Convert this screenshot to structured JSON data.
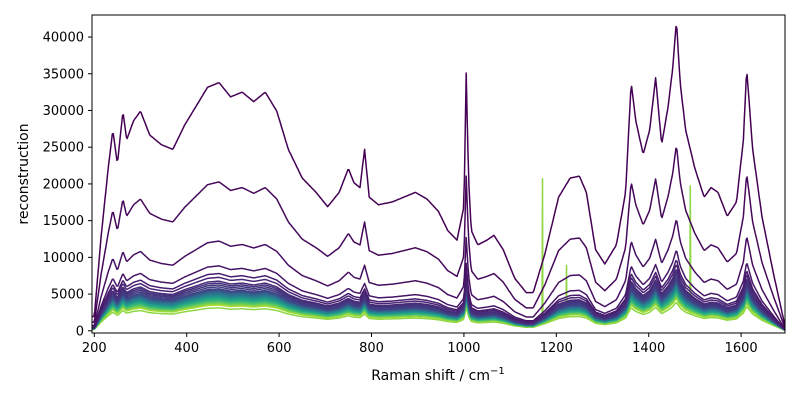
{
  "chart_data": {
    "type": "line",
    "title": "",
    "xlabel": "Raman shift / cm",
    "xlabel_sup": "−1",
    "ylabel": "reconstruction",
    "xlim": [
      195,
      1695
    ],
    "ylim": [
      -300,
      43000
    ],
    "xticks": [
      200,
      400,
      600,
      800,
      1000,
      1200,
      1400,
      1600
    ],
    "yticks": [
      0,
      5000,
      10000,
      15000,
      20000,
      25000,
      30000,
      35000,
      40000
    ],
    "grid": false,
    "legend": "none",
    "colormap": "viridis",
    "colormap_stops": [
      "#440154",
      "#482878",
      "#3e4989",
      "#31688e",
      "#26828e",
      "#1f9e89",
      "#35b779",
      "#6ece58",
      "#b5de2b",
      "#fde725"
    ],
    "series_count": 28,
    "series_amplitudes": [
      13000,
      7800,
      4700,
      3400,
      3000,
      2800,
      2600,
      2500,
      2400,
      2300,
      2200,
      2150,
      2100,
      2050,
      2000,
      1950,
      1900,
      1850,
      1800,
      1750,
      1700,
      1650,
      1600,
      1550,
      1500,
      1450,
      1400,
      1350
    ],
    "series_color_positions": [
      0.0,
      0.02,
      0.04,
      0.06,
      0.08,
      0.1,
      0.12,
      0.14,
      0.16,
      0.18,
      0.2,
      0.24,
      0.28,
      0.32,
      0.36,
      0.4,
      0.44,
      0.48,
      0.52,
      0.56,
      0.6,
      0.64,
      0.68,
      0.72,
      0.76,
      0.8,
      0.84,
      0.88
    ],
    "outlier_series": {
      "amplitude": 1200,
      "color": "#8fd744",
      "spikes": [
        {
          "x": 1170,
          "y": 20800
        },
        {
          "x": 1222,
          "y": 9000
        },
        {
          "x": 1490,
          "y": 19800
        }
      ]
    },
    "profile_x": [
      200,
      215,
      230,
      240,
      250,
      262,
      270,
      285,
      300,
      320,
      345,
      370,
      395,
      420,
      445,
      470,
      495,
      520,
      545,
      570,
      595,
      620,
      650,
      680,
      705,
      730,
      750,
      762,
      775,
      785,
      795,
      815,
      845,
      870,
      895,
      920,
      945,
      965,
      985,
      1000,
      1005,
      1010,
      1016,
      1030,
      1050,
      1065,
      1085,
      1110,
      1135,
      1150,
      1175,
      1205,
      1230,
      1250,
      1265,
      1285,
      1305,
      1330,
      1350,
      1362,
      1372,
      1388,
      1402,
      1415,
      1428,
      1442,
      1452,
      1460,
      1468,
      1480,
      1500,
      1520,
      1535,
      1550,
      1570,
      1590,
      1605,
      1612,
      1625,
      1645,
      1670,
      1695
    ],
    "profile_y": [
      0.15,
      1.0,
      1.7,
      2.1,
      1.75,
      2.3,
      2.0,
      2.2,
      2.3,
      2.05,
      1.95,
      1.9,
      2.15,
      2.35,
      2.55,
      2.6,
      2.45,
      2.5,
      2.4,
      2.5,
      2.3,
      1.9,
      1.6,
      1.45,
      1.3,
      1.45,
      1.7,
      1.55,
      1.5,
      1.9,
      1.4,
      1.32,
      1.35,
      1.4,
      1.45,
      1.38,
      1.25,
      1.05,
      0.95,
      1.3,
      2.7,
      1.6,
      1.05,
      0.9,
      0.95,
      1.0,
      0.85,
      0.55,
      0.4,
      0.4,
      0.8,
      1.4,
      1.6,
      1.62,
      1.45,
      0.85,
      0.7,
      0.9,
      1.45,
      2.6,
      2.2,
      1.85,
      2.1,
      2.65,
      1.95,
      2.35,
      2.75,
      3.25,
      2.6,
      2.1,
      1.7,
      1.4,
      1.5,
      1.45,
      1.2,
      1.35,
      2.0,
      2.75,
      1.9,
      1.2,
      0.6,
      0.05
    ]
  }
}
